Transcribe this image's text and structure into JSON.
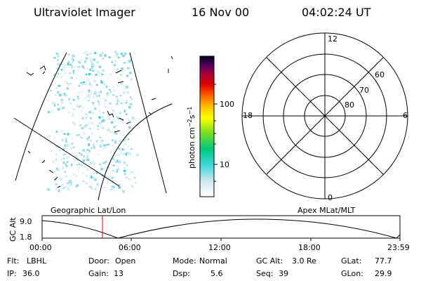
{
  "header": {
    "instrument": "Ultraviolet Imager",
    "date": "16 Nov 00",
    "time": "04:02:24 UT"
  },
  "colorbar": {
    "unit": "photon cm",
    "unit_exp1": "−2",
    "unit_mid": "s",
    "unit_exp2": "−1",
    "ticks": [
      "100",
      "10"
    ]
  },
  "polar": {
    "mlt_labels": [
      "12",
      "18",
      "6",
      "0"
    ],
    "mlat_labels": [
      "60",
      "70",
      "80"
    ]
  },
  "orbit": {
    "left_label": "Geographic Lat/Lon",
    "right_label": "Apex MLat/MLT",
    "axis_label": "GC Alt",
    "y_ticks": [
      "9.0",
      "1.8"
    ],
    "x_ticks": [
      "00:00",
      "06:00",
      "12:00",
      "18:00",
      "23:59"
    ]
  },
  "info": {
    "row1": [
      {
        "key": "Flt:",
        "val": "LBHL"
      },
      {
        "key": "Door:",
        "val": "Open"
      },
      {
        "key": "Mode:",
        "val": "Normal"
      },
      {
        "key": "GC Alt:",
        "val": "3.0 Re"
      },
      {
        "key": "GLat:",
        "val": "77.7"
      }
    ],
    "row2": [
      {
        "key": "IP:",
        "val": "36.0"
      },
      {
        "key": "Gain:",
        "val": "13"
      },
      {
        "key": "Dsp:",
        "val": "5.6"
      },
      {
        "key": "Seq:",
        "val": "39"
      },
      {
        "key": "GLon:",
        "val": "29.9"
      }
    ]
  },
  "colors": {
    "line": "#000000",
    "marker": "#e00000",
    "aurora": "#40d0d0"
  }
}
